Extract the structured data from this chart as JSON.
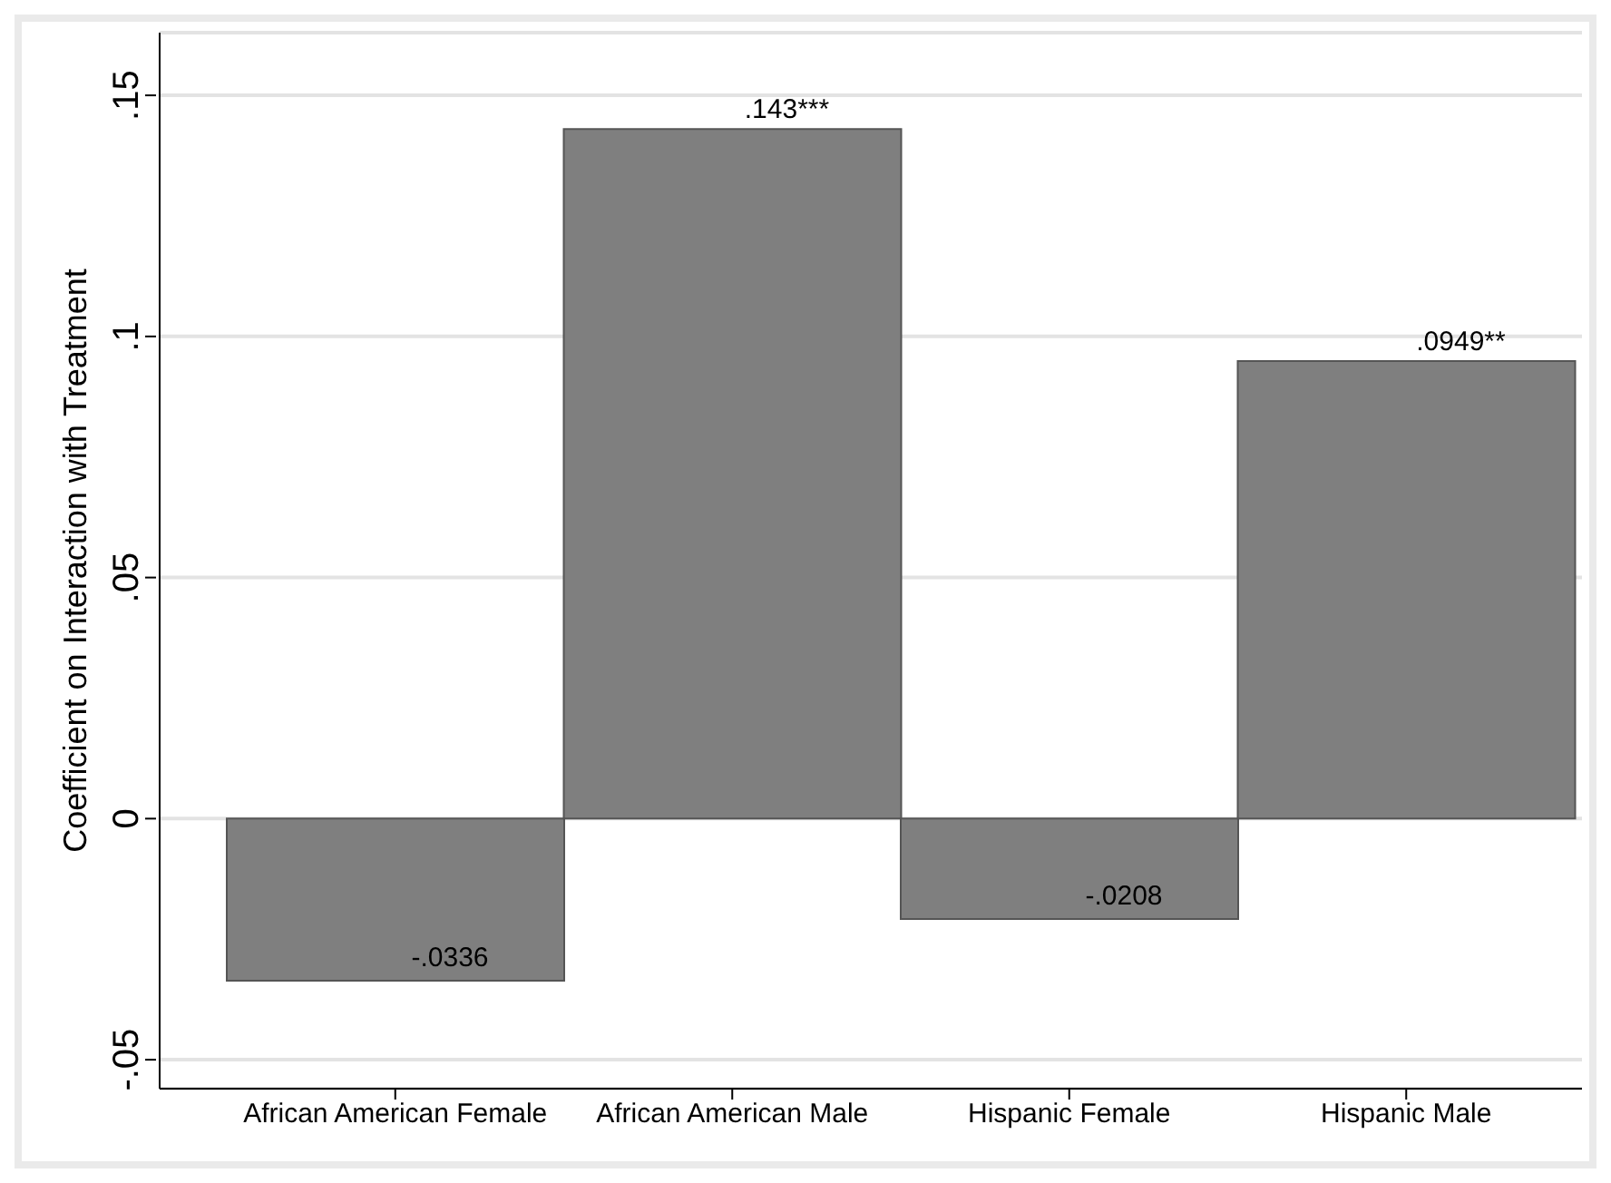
{
  "chart_data": {
    "type": "bar",
    "ylabel": "Coefficient on Interaction with Treatment",
    "categories": [
      "African American Female",
      "African American Male",
      "Hispanic Female",
      "Hispanic Male"
    ],
    "values": [
      -0.0336,
      0.143,
      -0.0208,
      0.0949
    ],
    "value_labels": [
      "-.0336",
      ".143***",
      "-.0208",
      ".0949**"
    ],
    "color": "#7f7f7f",
    "ylim": [
      -0.056,
      0.163
    ],
    "yticks": [
      {
        "value": -0.05,
        "label": "-.05"
      },
      {
        "value": 0,
        "label": "0"
      },
      {
        "value": 0.05,
        "label": ".05"
      },
      {
        "value": 0.1,
        "label": ".1"
      },
      {
        "value": 0.15,
        "label": ".15"
      }
    ],
    "grid": "y"
  }
}
